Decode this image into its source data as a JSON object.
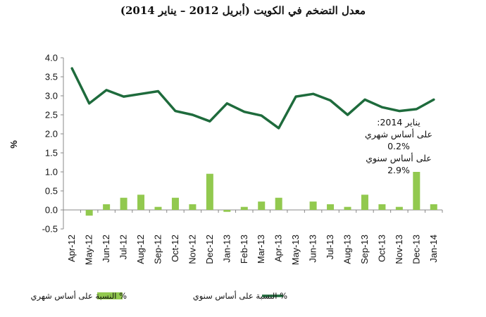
{
  "chart_data": {
    "type": "bar+line",
    "title": "معدل التضخم في الكويت (أبريل 2012 – يناير 2014)",
    "ylabel": "%",
    "ylim": [
      -0.5,
      4.0
    ],
    "yticks": [
      "4.0",
      "3.5",
      "3.0",
      "2.5",
      "2.0",
      "1.5",
      "1.0",
      "0.5",
      "0.0",
      "-0.5"
    ],
    "grid": false,
    "legend_position": "bottom",
    "categories": [
      "Apr-12",
      "May-12",
      "Jun-12",
      "Jul-12",
      "Aug-12",
      "Sep-12",
      "Oct-12",
      "Nov-12",
      "Dec-12",
      "Jan-13",
      "Feb-13",
      "Mar-13",
      "Apr-13",
      "May-13",
      "Jun-13",
      "Jul-13",
      "Aug-13",
      "Sep-13",
      "Oct-13",
      "Nov-13",
      "Dec-13",
      "Jan-14"
    ],
    "series": [
      {
        "name": "% النسبة على أساس شهري",
        "type": "bar",
        "color": "#92c94f",
        "values": [
          0.0,
          -0.15,
          0.15,
          0.32,
          0.4,
          0.08,
          0.32,
          0.15,
          0.95,
          -0.05,
          0.08,
          0.22,
          0.32,
          0.0,
          0.22,
          0.15,
          0.08,
          0.4,
          0.15,
          0.08,
          1.0,
          0.15
        ]
      },
      {
        "name": "% النسبة على أساس سنوي",
        "type": "line",
        "color": "#1e6b3c",
        "values": [
          3.72,
          2.8,
          3.15,
          2.98,
          3.05,
          3.12,
          2.6,
          2.5,
          2.33,
          2.8,
          2.58,
          2.48,
          2.15,
          2.98,
          3.05,
          2.88,
          2.5,
          2.9,
          2.7,
          2.6,
          2.65,
          2.9
        ]
      }
    ],
    "annotation": {
      "lines": [
        "يناير 2014:",
        "على أساس شهري",
        "0.2%",
        "على أساس سنوي",
        "2.9%"
      ]
    }
  }
}
